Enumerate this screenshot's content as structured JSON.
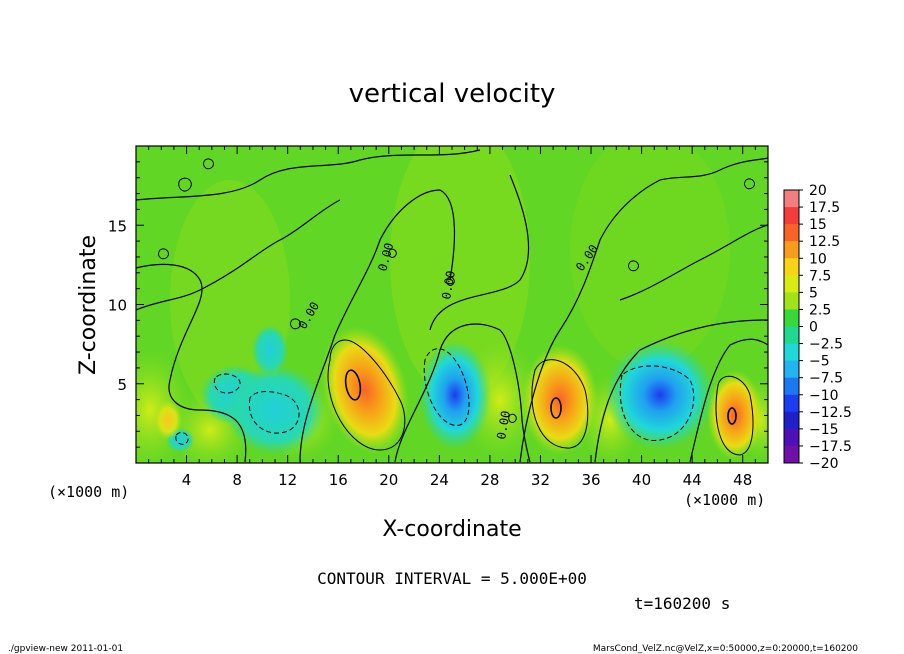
{
  "chart_data": {
    "type": "heatmap",
    "title": "vertical velocity",
    "xlabel": "X-coordinate",
    "ylabel": "Z-coordinate",
    "x_unit_left": "(×1000 m)",
    "x_unit_right": "(×1000 m)",
    "xlim": [
      0,
      50
    ],
    "ylim": [
      0,
      20
    ],
    "x_ticks": [
      4,
      8,
      12,
      16,
      20,
      24,
      28,
      32,
      36,
      40,
      44,
      48
    ],
    "y_ticks": [
      5,
      10,
      15
    ],
    "contour_interval_text": "CONTOUR INTERVAL = 5.000E+00",
    "time_text": "t=160200 s",
    "zero_contour_label": "0.00",
    "colorbar": {
      "levels": [
        20,
        17.5,
        15,
        12.5,
        10,
        7.5,
        5,
        2.5,
        0,
        -2.5,
        -5,
        -7.5,
        -10,
        -12.5,
        -15,
        -17.5,
        -20
      ],
      "labels": [
        "20",
        "17.5",
        "15",
        "12.5",
        "10",
        "7.5",
        "5",
        "2.5",
        "0",
        "−2.5",
        "−5",
        "−7.5",
        "−10",
        "−12.5",
        "−15",
        "−17.5",
        "−20"
      ],
      "colors": [
        "#f08080",
        "#f45c5c",
        "#f43c3c",
        "#f86428",
        "#f89c1c",
        "#f8d414",
        "#d8ec14",
        "#a0e418",
        "#38d838",
        "#20d890",
        "#20d8d8",
        "#20b4f0",
        "#1c78f0",
        "#1c3cf0",
        "#2020c8",
        "#5010b8",
        "#7010a8"
      ]
    },
    "features": [
      {
        "kind": "updraft",
        "x": 17.5,
        "z": 4.5,
        "peak": 15
      },
      {
        "kind": "updraft",
        "x": 33.5,
        "z": 3.5,
        "peak": 12.5
      },
      {
        "kind": "updraft",
        "x": 47.0,
        "z": 3.0,
        "peak": 12.5
      },
      {
        "kind": "downdraft",
        "x": 25.5,
        "z": 4.5,
        "peak": -12.5
      },
      {
        "kind": "downdraft",
        "x": 42.0,
        "z": 3.5,
        "peak": -12.5
      },
      {
        "kind": "downdraft",
        "x": 11.0,
        "z": 3.5,
        "peak": -7.5
      }
    ]
  },
  "footer": {
    "left": "./gpview-new   2011-01-01",
    "right": "MarsCond_VelZ.nc@VelZ,x=0:50000,z=0:20000,t=160200"
  }
}
